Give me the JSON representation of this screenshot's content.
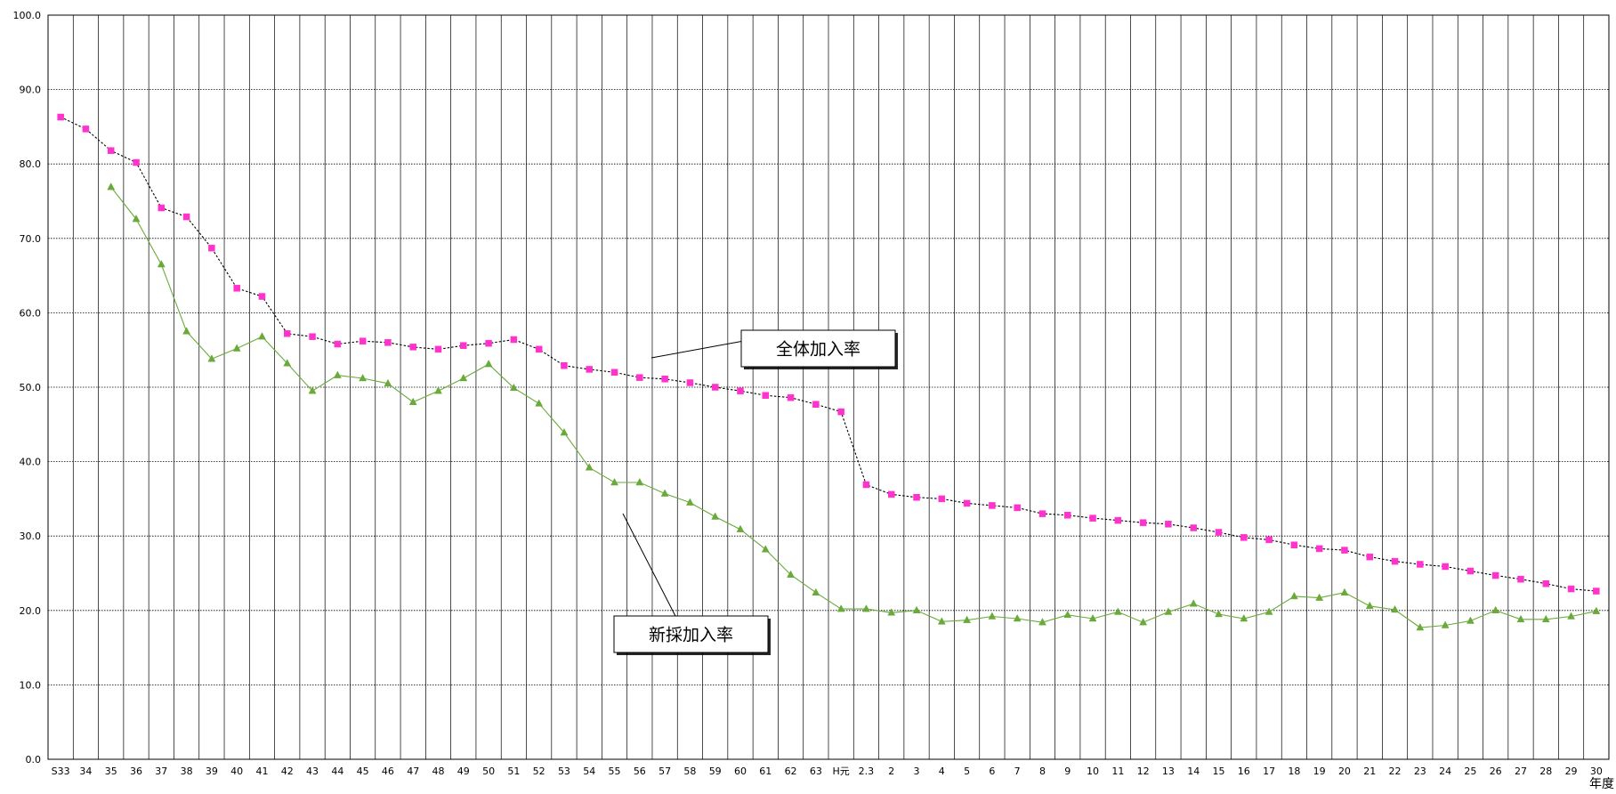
{
  "chart_data": {
    "type": "line",
    "title": "",
    "xlabel": "年度",
    "ylabel": "",
    "ylim": [
      0,
      100
    ],
    "yticks": [
      "0.0",
      "10.0",
      "20.0",
      "30.0",
      "40.0",
      "50.0",
      "60.0",
      "70.0",
      "80.0",
      "90.0",
      "100.0"
    ],
    "grid": true,
    "categories": [
      "S33",
      "34",
      "35",
      "36",
      "37",
      "38",
      "39",
      "40",
      "41",
      "42",
      "43",
      "44",
      "45",
      "46",
      "47",
      "48",
      "49",
      "50",
      "51",
      "52",
      "53",
      "54",
      "55",
      "56",
      "57",
      "58",
      "59",
      "60",
      "61",
      "62",
      "63",
      "H元",
      "2.3",
      "2",
      "3",
      "4",
      "5",
      "6",
      "7",
      "8",
      "9",
      "10",
      "11",
      "12",
      "13",
      "14",
      "15",
      "16",
      "17",
      "18",
      "19",
      "20",
      "21",
      "22",
      "23",
      "24",
      "25",
      "26",
      "27",
      "28",
      "29",
      "30"
    ],
    "series": [
      {
        "name": "全体加入率",
        "color": "#ff33cc",
        "line_color": "#000000",
        "line_style": "dashed",
        "marker": "square",
        "values": [
          86.3,
          84.7,
          81.8,
          80.2,
          74.1,
          72.9,
          68.7,
          63.3,
          62.2,
          57.2,
          56.8,
          55.8,
          56.2,
          56.0,
          55.4,
          55.1,
          55.6,
          55.9,
          56.4,
          55.1,
          52.9,
          52.4,
          52.0,
          51.3,
          51.1,
          50.6,
          50.0,
          49.5,
          48.9,
          48.6,
          47.7,
          46.7,
          36.9,
          35.6,
          35.2,
          35.0,
          34.4,
          34.1,
          33.8,
          33.0,
          32.8,
          32.4,
          32.1,
          31.8,
          31.6,
          31.1,
          30.5,
          29.8,
          29.5,
          28.8,
          28.3,
          28.1,
          27.2,
          26.6,
          26.2,
          25.9,
          25.3,
          24.7,
          24.2,
          23.6,
          22.9,
          22.6
        ]
      },
      {
        "name": "新採加入率",
        "color": "#6aaa3a",
        "line_color": "#6aaa3a",
        "line_style": "solid",
        "marker": "triangle",
        "values": [
          null,
          null,
          76.9,
          72.6,
          66.5,
          57.5,
          53.8,
          55.2,
          56.8,
          53.2,
          49.5,
          51.6,
          51.2,
          50.5,
          48.0,
          49.5,
          51.2,
          53.1,
          49.9,
          47.8,
          43.9,
          39.2,
          37.2,
          37.2,
          35.7,
          34.5,
          32.6,
          30.9,
          28.2,
          24.8,
          22.4,
          20.2,
          20.2,
          19.7,
          20.0,
          18.5,
          18.7,
          19.2,
          18.9,
          18.4,
          19.4,
          18.9,
          19.8,
          18.4,
          19.8,
          20.9,
          19.5,
          18.9,
          19.8,
          21.9,
          21.7,
          22.4,
          20.6,
          20.1,
          17.7,
          18.0,
          18.6,
          20.0,
          18.8,
          18.8,
          19.2,
          19.9
        ]
      }
    ],
    "annotations": [
      {
        "text": "全体加入率",
        "points_to": "全体加入率"
      },
      {
        "text": "新採加入率",
        "points_to": "新採加入率"
      }
    ]
  }
}
